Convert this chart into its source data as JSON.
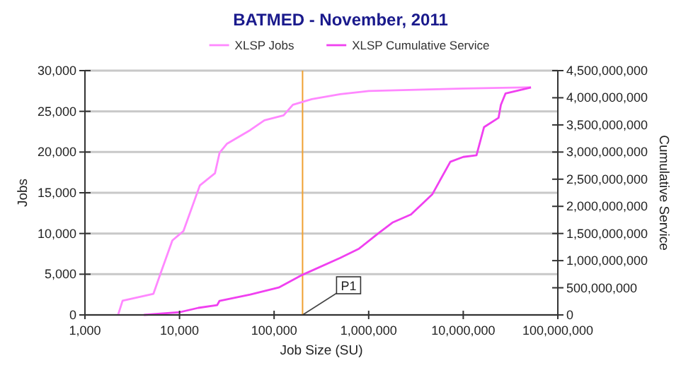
{
  "chart_data": {
    "type": "line",
    "title": "BATMED - November, 2011",
    "xlabel": "Job Size (SU)",
    "ylabel": "Jobs",
    "y2label": "Cumulative Service",
    "log": "x",
    "grid": "y",
    "legend": "top",
    "marker": "none",
    "xlim": [
      1000,
      100000000
    ],
    "xticks": [
      {
        "value": 1000,
        "label": "1,000"
      },
      {
        "value": 10000,
        "label": "10,000"
      },
      {
        "value": 100000,
        "label": "100,000"
      },
      {
        "value": 1000000,
        "label": "1,000,000"
      },
      {
        "value": 10000000,
        "label": "10,000,000"
      },
      {
        "value": 100000000,
        "label": "100,000,000"
      }
    ],
    "ylim": [
      0,
      30000
    ],
    "yticks": [
      0,
      {
        "value": 5000,
        "label": "5,000"
      },
      {
        "value": 10000,
        "label": "10,000"
      },
      {
        "value": 15000,
        "label": "15,000"
      },
      {
        "value": 20000,
        "label": "20,000"
      },
      {
        "value": 25000,
        "label": "25,000"
      },
      {
        "value": 30000,
        "label": "30,000"
      }
    ],
    "y2lim": [
      0,
      4500000000
    ],
    "y2ticks": [
      0,
      {
        "value": 500000000,
        "label": "500,000,000"
      },
      {
        "value": 1000000000,
        "label": "1,000,000,000"
      },
      {
        "value": 1500000000,
        "label": "1,500,000,000"
      },
      {
        "value": 2000000000,
        "label": "2,000,000,000"
      },
      {
        "value": 2500000000,
        "label": "2,500,000,000"
      },
      {
        "value": 3000000000,
        "label": "3,000,000,000"
      },
      {
        "value": 3500000000,
        "label": "3,500,000,000"
      },
      {
        "value": 4000000000,
        "label": "4,000,000,000"
      },
      {
        "value": 4500000000,
        "label": "4,500,000,000"
      }
    ],
    "ref_lines": [
      {
        "axis": "x",
        "value": 200000,
        "label": "P1",
        "color": "#f0a030"
      }
    ],
    "series": [
      {
        "name": "XLSP Jobs",
        "color": "#ff88ff",
        "x": [
          2240,
          2500,
          5300,
          6300,
          8400,
          11000,
          16400,
          23700,
          26500,
          31600,
          56000,
          79000,
          126000,
          158000,
          251000,
          500000,
          1000000,
          10000000,
          52000000
        ],
        "values": [
          0,
          1740,
          2600,
          5100,
          9150,
          10300,
          15900,
          17400,
          19900,
          21000,
          22700,
          23900,
          24500,
          25800,
          26500,
          27100,
          27500,
          27800,
          27950
        ]
      },
      {
        "name": "XLSP Cumulative Service",
        "color": "#f040f0",
        "axis": "y2",
        "x": [
          4200,
          10000,
          15800,
          25000,
          26500,
          56000,
          112000,
          200000,
          500000,
          790000,
          1260000,
          1780000,
          2800000,
          3550000,
          4700000,
          5600000,
          7300000,
          10000000,
          13800000,
          16600000,
          23600000,
          25000000,
          28000000,
          52000000
        ],
        "values": [
          0,
          50000000,
          130000000,
          180000000,
          260000000,
          375000000,
          505000000,
          740000000,
          1050000000,
          1220000000,
          1500000000,
          1700000000,
          1850000000,
          2020000000,
          2220000000,
          2460000000,
          2820000000,
          2910000000,
          2940000000,
          3460000000,
          3630000000,
          3870000000,
          4080000000,
          4190000000
        ]
      }
    ]
  }
}
